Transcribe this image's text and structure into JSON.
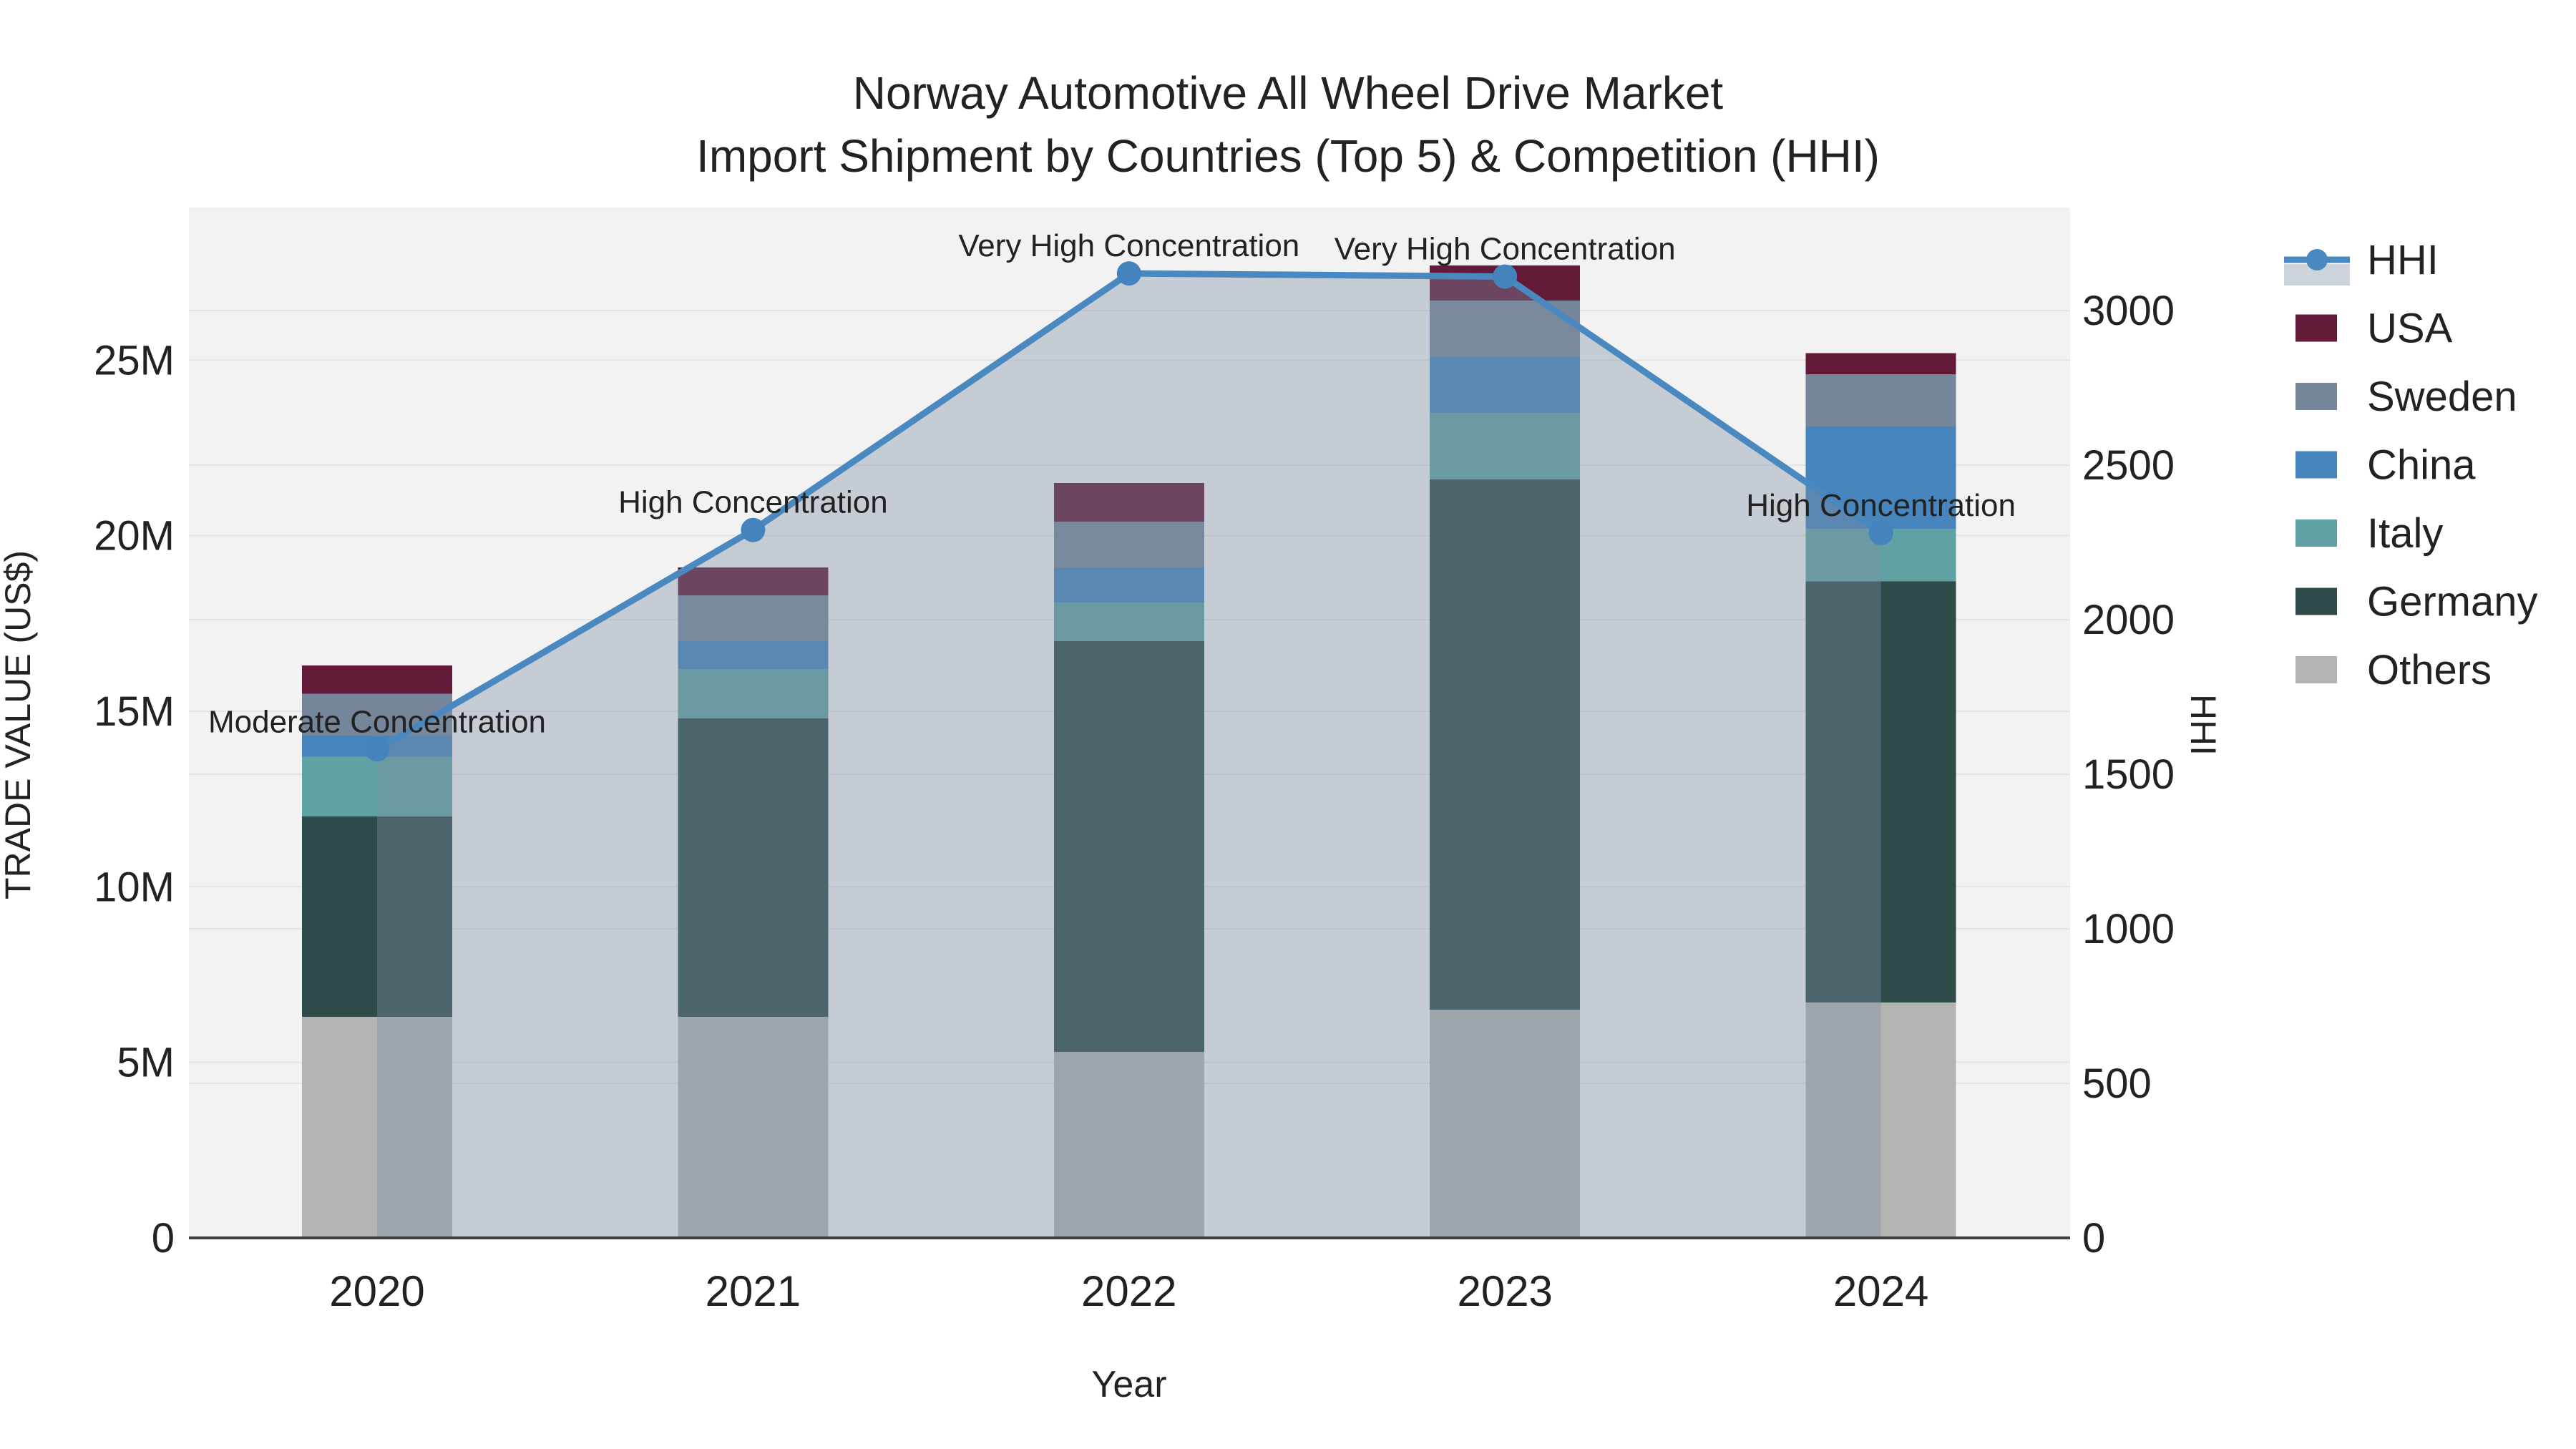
{
  "figure": {
    "title_line1": "Norway Automotive All Wheel Drive Market",
    "title_line2": "Import Shipment by Countries (Top 5) & Competition (HHI)"
  },
  "chart_data": {
    "type": "bar",
    "subtype": "stacked-bars-with-line-overlay",
    "categories": [
      "2020",
      "2021",
      "2022",
      "2023",
      "2024"
    ],
    "series": [
      {
        "name": "Others",
        "values": [
          6.3,
          6.3,
          5.3,
          6.5,
          6.7
        ],
        "color": "#b2b4b1"
      },
      {
        "name": "Germany",
        "values": [
          5.7,
          8.5,
          11.7,
          15.1,
          12.0
        ],
        "color": "#2e4b49"
      },
      {
        "name": "Italy",
        "values": [
          1.7,
          1.4,
          1.1,
          1.9,
          1.5
        ],
        "color": "#60a2a3"
      },
      {
        "name": "China",
        "values": [
          0.6,
          0.8,
          1.0,
          1.6,
          2.9
        ],
        "color": "#4685bd"
      },
      {
        "name": "Sweden",
        "values": [
          1.2,
          1.3,
          1.3,
          1.6,
          1.5
        ],
        "color": "#75859a"
      },
      {
        "name": "USA",
        "values": [
          0.8,
          0.8,
          1.1,
          1.0,
          0.6
        ],
        "color": "#621a38"
      }
    ],
    "bar_totals_musd": [
      16.3,
      19.1,
      21.5,
      27.7,
      25.2
    ],
    "hhi": {
      "name": "HHI",
      "values": [
        1580,
        2290,
        3120,
        3110,
        2280
      ],
      "line_color": "#4a88c0",
      "marker_color": "#4483bc",
      "area_fill": "rgba(127,142,162,0.38)"
    },
    "annotations": [
      {
        "category": "2020",
        "text": "Moderate Concentration"
      },
      {
        "category": "2021",
        "text": "High Concentration"
      },
      {
        "category": "2022",
        "text": "Very High Concentration"
      },
      {
        "category": "2023",
        "text": "Very High Concentration"
      },
      {
        "category": "2024",
        "text": "High Concentration"
      }
    ],
    "left_axis": {
      "label": "TRADE VALUE (US$)",
      "tick_labels": [
        "0",
        "5M",
        "10M",
        "15M",
        "20M",
        "25M"
      ],
      "tick_values": [
        0,
        5,
        10,
        15,
        20,
        25
      ],
      "range": [
        0,
        29.35
      ],
      "unit": "M US$"
    },
    "right_axis": {
      "label": "HHI",
      "tick_labels": [
        "0",
        "500",
        "1000",
        "1500",
        "2000",
        "2500",
        "3000"
      ],
      "tick_values": [
        0,
        500,
        1000,
        1500,
        2000,
        2500,
        3000
      ],
      "range": [
        0,
        3333
      ]
    },
    "x_axis": {
      "label": "Year"
    },
    "legend": {
      "position": "right",
      "items": [
        {
          "label": "HHI",
          "type": "line",
          "color": "#4a88c0"
        },
        {
          "label": "USA",
          "type": "bar",
          "color": "#621a38"
        },
        {
          "label": "Sweden",
          "type": "bar",
          "color": "#75859a"
        },
        {
          "label": "China",
          "type": "bar",
          "color": "#4685bd"
        },
        {
          "label": "Italy",
          "type": "bar",
          "color": "#60a2a3"
        },
        {
          "label": "Germany",
          "type": "bar",
          "color": "#2e4b49"
        },
        {
          "label": "Others",
          "type": "bar",
          "color": "#b2b4b1"
        }
      ]
    },
    "style": {
      "plot_bg": "#f2f2f3",
      "grid_color": "#e4e4e7",
      "axis_line_color": "#3f3f3f",
      "grid_on": true
    }
  }
}
